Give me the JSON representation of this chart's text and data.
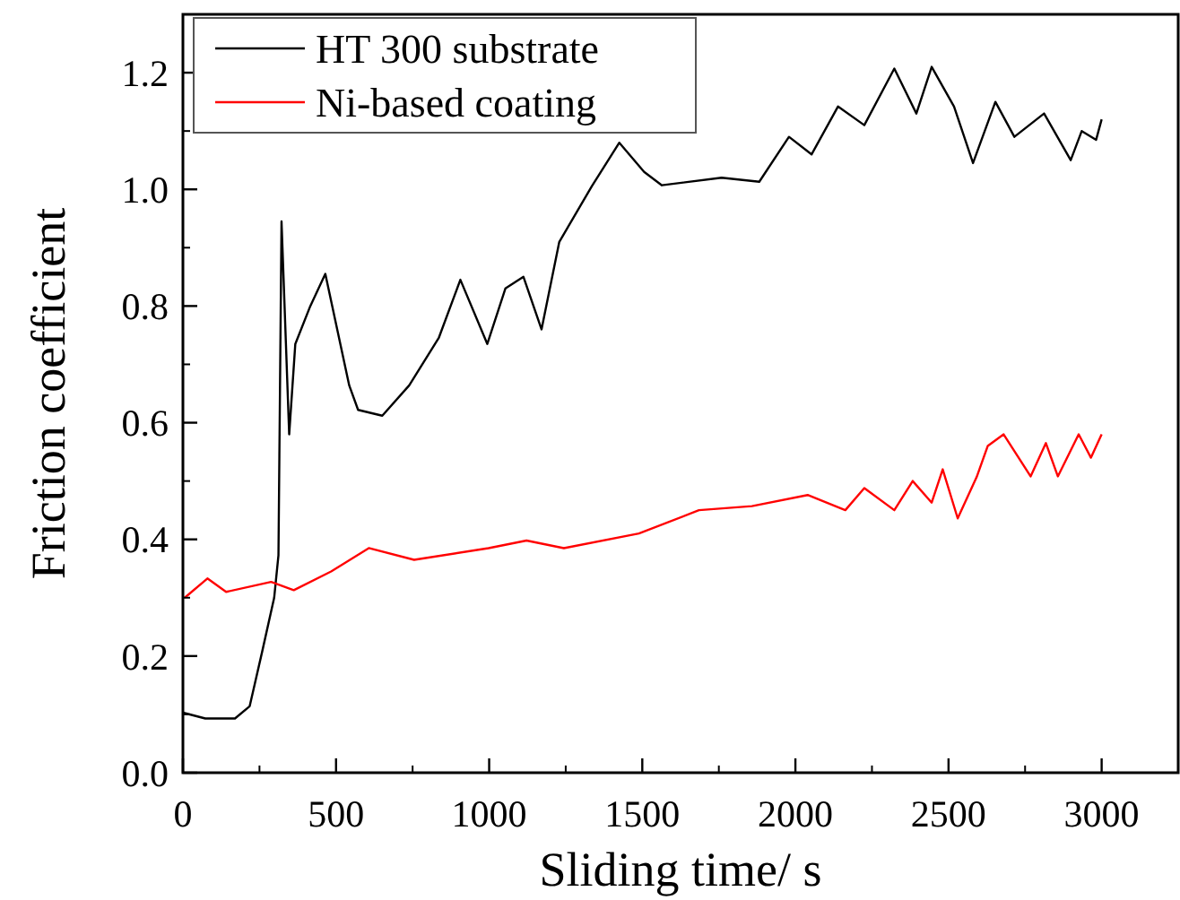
{
  "chart_data": {
    "type": "line",
    "xlabel": "Sliding time/ s",
    "ylabel": "Friction coefficient",
    "xlim": [
      0,
      3250
    ],
    "ylim": [
      0,
      1.3
    ],
    "xticks": [
      0,
      500,
      1000,
      1500,
      2000,
      2500,
      3000
    ],
    "yticks": [
      {
        "value": 0,
        "label": "0.0"
      },
      0.2,
      0.4,
      0.6,
      0.8,
      {
        "value": 1,
        "label": "1.0"
      },
      1.2
    ],
    "legend": "top left",
    "grid": false,
    "line_style": "solid",
    "marker": "none",
    "series": [
      {
        "name": "HT 300 substrate",
        "color": "#000000",
        "x": [
          0,
          73,
          170,
          218,
          259,
          298,
          312,
          322,
          347,
          367,
          416,
          465,
          543,
          572,
          651,
          739,
          836,
          906,
          994,
          1053,
          1112,
          1171,
          1229,
          1335,
          1425,
          1506,
          1564,
          1759,
          1882,
          1979,
          2053,
          2139,
          2225,
          2323,
          2395,
          2445,
          2518,
          2580,
          2653,
          2715,
          2812,
          2899,
          2935,
          2982,
          3000
        ],
        "values": [
          0.103,
          0.093,
          0.093,
          0.114,
          0.208,
          0.3,
          0.373,
          0.945,
          0.58,
          0.735,
          0.8,
          0.855,
          0.664,
          0.622,
          0.612,
          0.664,
          0.746,
          0.845,
          0.735,
          0.83,
          0.85,
          0.76,
          0.91,
          1.005,
          1.08,
          1.03,
          1.007,
          1.02,
          1.013,
          1.09,
          1.06,
          1.142,
          1.11,
          1.207,
          1.13,
          1.21,
          1.142,
          1.045,
          1.15,
          1.09,
          1.13,
          1.05,
          1.1,
          1.085,
          1.12
        ]
      },
      {
        "name": "Ni-based coating",
        "color": "#ff0000",
        "x": [
          6,
          80,
          141,
          288,
          362,
          484,
          607,
          755,
          998,
          1122,
          1244,
          1489,
          1685,
          1858,
          2040,
          2163,
          2225,
          2323,
          2383,
          2445,
          2481,
          2530,
          2592,
          2628,
          2680,
          2768,
          2818,
          2857,
          2925,
          2965,
          3000
        ],
        "values": [
          0.3,
          0.333,
          0.31,
          0.327,
          0.313,
          0.345,
          0.385,
          0.365,
          0.385,
          0.398,
          0.385,
          0.41,
          0.45,
          0.457,
          0.476,
          0.45,
          0.488,
          0.45,
          0.5,
          0.463,
          0.52,
          0.436,
          0.507,
          0.56,
          0.58,
          0.508,
          0.565,
          0.508,
          0.58,
          0.54,
          0.58
        ]
      }
    ]
  }
}
